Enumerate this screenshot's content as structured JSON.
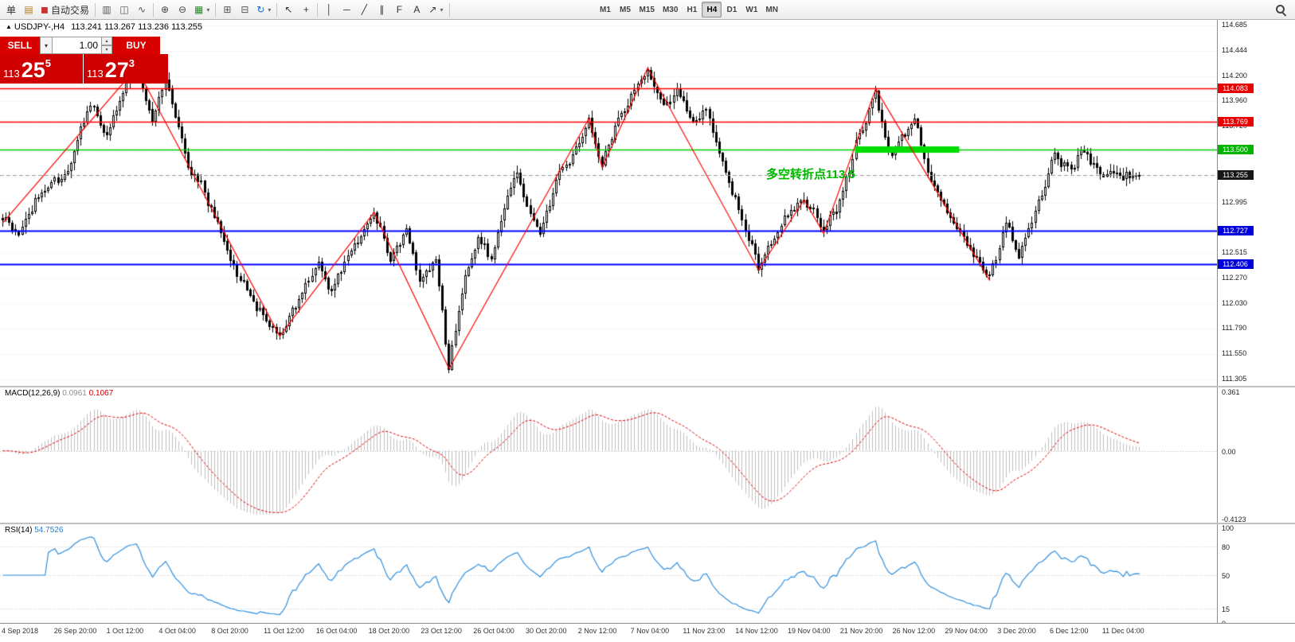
{
  "toolbar": {
    "items": [
      {
        "name": "new-order-button",
        "label": "单"
      },
      {
        "name": "chart-window-icon",
        "glyph": "▤",
        "color": "#b08020"
      },
      {
        "name": "autotrading-button",
        "label": "自动交易",
        "pre_glyph": "◼",
        "pre_color": "#c83232"
      },
      {
        "sep": true
      },
      {
        "name": "bar-chart-type-icon",
        "glyph": "▥",
        "color": "#555"
      },
      {
        "name": "candlestick-chart-type-icon",
        "glyph": "◫",
        "color": "#555"
      },
      {
        "name": "line-chart-type-icon",
        "glyph": "∿",
        "color": "#555"
      },
      {
        "sep": true
      },
      {
        "name": "zoom-in-icon",
        "glyph": "⊕",
        "color": "#444"
      },
      {
        "name": "zoom-out-icon",
        "glyph": "⊖",
        "color": "#444"
      },
      {
        "name": "new-chart-icon",
        "glyph": "▦",
        "color": "#2e8b2e",
        "dropdown": true
      },
      {
        "sep": true
      },
      {
        "name": "tile-windows-icon",
        "glyph": "⊞",
        "color": "#555"
      },
      {
        "name": "cascade-windows-icon",
        "glyph": "⊟",
        "color": "#555"
      },
      {
        "name": "refresh-icon",
        "glyph": "↻",
        "color": "#1565c0",
        "dropdown": true
      },
      {
        "sep": true
      },
      {
        "name": "cursor-icon",
        "glyph": "↖",
        "color": "#333"
      },
      {
        "name": "crosshair-icon",
        "glyph": "+",
        "color": "#333"
      },
      {
        "sep": true
      },
      {
        "name": "vertical-line-icon",
        "glyph": "│",
        "color": "#333"
      },
      {
        "name": "horizontal-line-icon",
        "glyph": "─",
        "color": "#333"
      },
      {
        "name": "trendline-icon",
        "glyph": "╱",
        "color": "#333"
      },
      {
        "name": "channel-icon",
        "glyph": "∥",
        "color": "#333"
      },
      {
        "name": "fibonacci-icon",
        "glyph": "F",
        "color": "#333"
      },
      {
        "name": "text-label-icon",
        "glyph": "A",
        "color": "#333"
      },
      {
        "name": "arrow-object-icon",
        "glyph": "↗",
        "color": "#333",
        "dropdown": true
      },
      {
        "sep": true
      }
    ],
    "timeframes": [
      "M1",
      "M5",
      "M15",
      "M30",
      "H1",
      "H4",
      "D1",
      "W1",
      "MN"
    ],
    "active_timeframe": "H4"
  },
  "chart": {
    "marker": "▲",
    "symbol_period": "USDJPY-,H4",
    "ohlc": "113.241 113.267 113.236 113.255",
    "annotation_text": "多空转折点113.5"
  },
  "trade_panel": {
    "sell_label": "SELL",
    "buy_label": "BUY",
    "volume": "1.00",
    "sell_big": "113",
    "sell_pips": "25",
    "sell_pipette": "5",
    "buy_big": "113",
    "buy_pips": "27",
    "buy_pipette": "3"
  },
  "macd": {
    "label": "MACD(12,26,9)",
    "value_main": "0.0961",
    "value_signal": "0.1067",
    "axis_labels": [
      "0.361",
      "0.00",
      "-0.4123"
    ]
  },
  "rsi": {
    "label": "RSI(14)",
    "value": "54.7526",
    "axis_labels": [
      "100",
      "80",
      "50",
      "15",
      "0"
    ]
  },
  "price_axis": {
    "ticks": [
      "114.685",
      "114.444",
      "114.200",
      "113.960",
      "113.720",
      "112.995",
      "112.515",
      "112.270",
      "112.030",
      "111.790",
      "111.550",
      "111.305"
    ]
  },
  "time_axis": {
    "labels": [
      "4 Sep 2018",
      "26 Sep 20:00",
      "1 Oct 12:00",
      "4 Oct 04:00",
      "8 Oct 20:00",
      "11 Oct 12:00",
      "16 Oct 04:00",
      "18 Oct 20:00",
      "23 Oct 12:00",
      "26 Oct 04:00",
      "30 Oct 20:00",
      "2 Nov 12:00",
      "7 Nov 04:00",
      "11 Nov 23:00",
      "14 Nov 12:00",
      "19 Nov 04:00",
      "21 Nov 20:00",
      "26 Nov 12:00",
      "29 Nov 04:00",
      "3 Dec 20:00",
      "6 Dec 12:00",
      "11 Dec 04:00"
    ]
  },
  "colors": {
    "bull": "#ffffff",
    "bear": "#000000",
    "grid": "#e3e3e3",
    "zigzag": "#ff0000",
    "histogram": "#c0c0c0",
    "macd_signal": "#e00000",
    "rsi_line": "#2f8fdf",
    "annotation": "#00b800"
  },
  "chart_data": {
    "type": "candlestick",
    "symbol": "USDJPY",
    "timeframe": "H4",
    "visible_range": {
      "price_top": 114.685,
      "price_bottom": 111.305
    },
    "candle_count": 350,
    "last_close": 113.255,
    "price_path": [
      [
        0,
        112.85
      ],
      [
        5,
        112.7
      ],
      [
        12,
        113.1
      ],
      [
        20,
        113.3
      ],
      [
        27,
        113.95
      ],
      [
        32,
        113.62
      ],
      [
        38,
        114.15
      ],
      [
        41,
        114.28
      ],
      [
        46,
        113.78
      ],
      [
        50,
        114.2
      ],
      [
        57,
        113.35
      ],
      [
        62,
        113.1
      ],
      [
        70,
        112.45
      ],
      [
        78,
        112.0
      ],
      [
        85,
        111.72
      ],
      [
        90,
        112.02
      ],
      [
        97,
        112.42
      ],
      [
        101,
        112.15
      ],
      [
        107,
        112.55
      ],
      [
        114,
        112.9
      ],
      [
        119,
        112.45
      ],
      [
        124,
        112.75
      ],
      [
        128,
        112.22
      ],
      [
        133,
        112.48
      ],
      [
        137,
        111.43
      ],
      [
        142,
        112.3
      ],
      [
        146,
        112.65
      ],
      [
        150,
        112.45
      ],
      [
        155,
        113.05
      ],
      [
        158,
        113.3
      ],
      [
        161,
        112.95
      ],
      [
        165,
        112.72
      ],
      [
        170,
        113.2
      ],
      [
        175,
        113.45
      ],
      [
        180,
        113.8
      ],
      [
        184,
        113.36
      ],
      [
        188,
        113.7
      ],
      [
        192,
        113.95
      ],
      [
        198,
        114.26
      ],
      [
        203,
        113.9
      ],
      [
        207,
        114.08
      ],
      [
        212,
        113.76
      ],
      [
        216,
        113.9
      ],
      [
        222,
        113.3
      ],
      [
        228,
        112.75
      ],
      [
        232,
        112.4
      ],
      [
        236,
        112.6
      ],
      [
        240,
        112.85
      ],
      [
        246,
        113.05
      ],
      [
        252,
        112.72
      ],
      [
        257,
        113.0
      ],
      [
        262,
        113.55
      ],
      [
        265,
        113.8
      ],
      [
        268,
        114.06
      ],
      [
        272,
        113.45
      ],
      [
        276,
        113.6
      ],
      [
        280,
        113.78
      ],
      [
        285,
        113.2
      ],
      [
        290,
        112.9
      ],
      [
        296,
        112.6
      ],
      [
        303,
        112.26
      ],
      [
        308,
        112.8
      ],
      [
        312,
        112.48
      ],
      [
        318,
        113.0
      ],
      [
        323,
        113.45
      ],
      [
        327,
        113.3
      ],
      [
        332,
        113.5
      ],
      [
        336,
        113.3
      ],
      [
        341,
        113.28
      ],
      [
        345,
        113.24
      ],
      [
        349,
        113.255
      ]
    ],
    "zigzag": [
      [
        0,
        112.8
      ],
      [
        41,
        114.28
      ],
      [
        85,
        111.72
      ],
      [
        114,
        112.9
      ],
      [
        137,
        111.41
      ],
      [
        180,
        113.8
      ],
      [
        184,
        113.33
      ],
      [
        198,
        114.28
      ],
      [
        232,
        112.35
      ],
      [
        246,
        113.02
      ],
      [
        252,
        112.7
      ],
      [
        268,
        114.08
      ],
      [
        303,
        112.25
      ]
    ],
    "levels": [
      {
        "price": 114.083,
        "color": "#ff0000",
        "style": "solid",
        "width": 1.5,
        "badge": "114.083",
        "badge_bg": "#e80000"
      },
      {
        "price": 113.769,
        "color": "#ff0000",
        "style": "solid",
        "width": 1.5,
        "badge": "113.769",
        "badge_bg": "#e80000"
      },
      {
        "price": 113.5,
        "color": "#00cc00",
        "style": "solid",
        "width": 1.5,
        "badge": "113.500",
        "badge_bg": "#00b400"
      },
      {
        "price": 113.255,
        "color": "#999999",
        "style": "dash",
        "width": 1,
        "badge": "113.255",
        "badge_bg": "#161616"
      },
      {
        "price": 112.727,
        "color": "#0000ff",
        "style": "solid",
        "width": 2,
        "badge": "112.727",
        "badge_bg": "#0000dd"
      },
      {
        "price": 112.406,
        "color": "#0000ff",
        "style": "solid",
        "width": 2,
        "badge": "112.406",
        "badge_bg": "#0000dd"
      }
    ],
    "highlight_bar": {
      "price": 113.5,
      "start_index": 262,
      "end_index": 294,
      "color": "#00dd00",
      "thickness": 8
    },
    "indicators": {
      "macd": {
        "fast": 12,
        "slow": 26,
        "signal": 9,
        "axis_max": 0.361,
        "axis_min": -0.4123
      },
      "rsi": {
        "period": 14,
        "grid_levels": [
          80,
          50,
          15
        ]
      }
    }
  }
}
